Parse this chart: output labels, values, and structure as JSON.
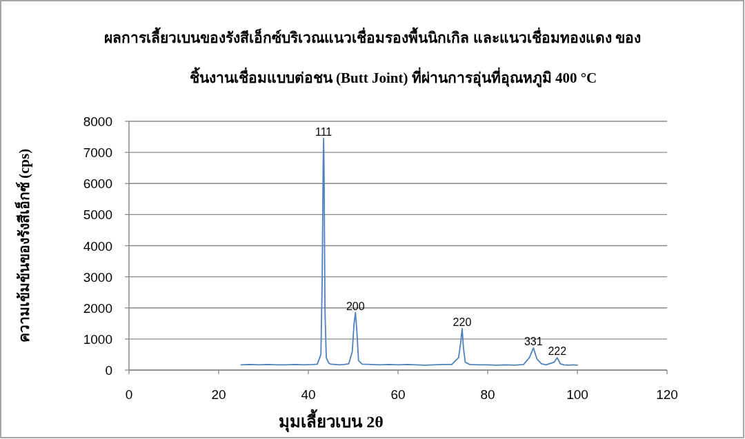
{
  "chart_data": {
    "type": "line",
    "title": "ผลการเลี้ยวเบนของรังสีเอ็กซ์บริเวณแนวเชื่อมรองพื้นนิกเกิล และแนวเชื่อมทองแดง ของ",
    "subtitle": "ชิ้นงานเชื่อมแบบต่อชน  (Butt Joint) ที่ผ่านการอุ่นที่อุณหภูมิ 400 °C",
    "xlabel": "มุมเลี้ยวเบน 2θ",
    "ylabel": "ความเข้มข้นของรังสีเอ็กซ์ (cps)",
    "xlim": [
      0,
      120
    ],
    "xticks": [
      0,
      20,
      40,
      60,
      80,
      100,
      120
    ],
    "ylim": [
      0,
      8000
    ],
    "yticks": [
      0,
      1000,
      2000,
      3000,
      4000,
      5000,
      6000,
      7000,
      8000
    ],
    "grid": "y",
    "marker": "none",
    "line_style": "solid",
    "series": [
      {
        "color": "#4f81bd",
        "x": [
          25,
          27,
          29,
          31,
          33,
          35,
          37,
          39,
          41,
          42,
          42.8,
          43.1,
          43.3,
          43.4,
          43.5,
          43.7,
          44,
          44.3,
          44.6,
          45,
          46,
          47,
          48,
          49,
          49.8,
          50.2,
          50.5,
          50.8,
          51.2,
          52,
          54,
          56,
          58,
          60,
          62,
          64,
          66,
          68,
          70,
          72,
          73.5,
          74,
          74.3,
          74.6,
          75,
          76,
          78,
          80,
          82,
          84,
          86,
          88,
          89.3,
          90.2,
          91,
          92,
          93,
          94.8,
          95.5,
          96.2,
          97,
          98,
          99,
          100
        ],
        "values": [
          170,
          180,
          170,
          180,
          170,
          170,
          180,
          170,
          180,
          190,
          500,
          3000,
          6500,
          7450,
          6500,
          2000,
          400,
          300,
          220,
          190,
          180,
          170,
          180,
          200,
          600,
          1500,
          1850,
          1300,
          300,
          190,
          180,
          170,
          180,
          170,
          180,
          170,
          160,
          170,
          180,
          180,
          400,
          900,
          1340,
          700,
          250,
          180,
          170,
          170,
          160,
          170,
          160,
          180,
          400,
          710,
          350,
          200,
          170,
          250,
          400,
          200,
          170,
          160,
          170,
          160
        ]
      }
    ],
    "annotations": [
      {
        "text": "111",
        "x": 43.4,
        "y": 7450
      },
      {
        "text": "200",
        "x": 50.5,
        "y": 1850
      },
      {
        "text": "220",
        "x": 74.3,
        "y": 1340
      },
      {
        "text": "331",
        "x": 90.2,
        "y": 710
      },
      {
        "text": "222",
        "x": 95.5,
        "y": 400
      }
    ]
  }
}
